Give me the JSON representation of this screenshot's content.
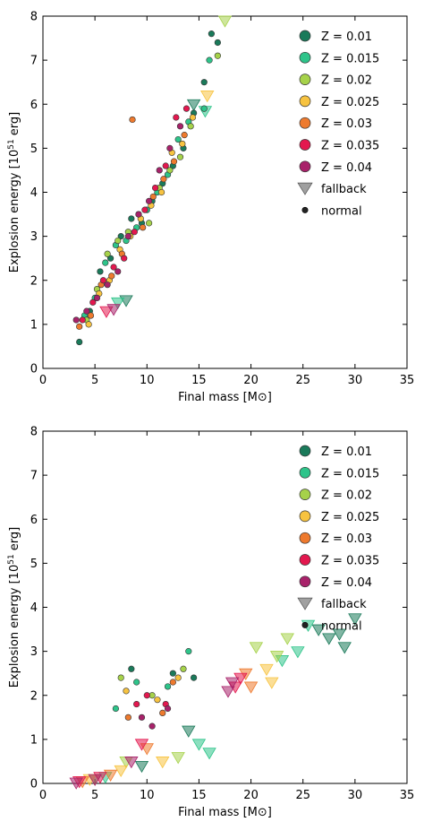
{
  "chart_data": [
    {
      "type": "scatter",
      "title": "",
      "xlabel": "Final mass [M⊙]",
      "ylabel_parts": [
        "Explosion energy [10",
        "51",
        " erg]"
      ],
      "xlim": [
        0,
        35
      ],
      "ylim": [
        0,
        8
      ],
      "xticks": [
        "0",
        "5",
        "10",
        "15",
        "20",
        "25",
        "30",
        "35"
      ],
      "yticks": [
        "0",
        "1",
        "2",
        "3",
        "4",
        "5",
        "6",
        "7",
        "8"
      ],
      "grid": false,
      "legend_position": "top-right",
      "legend": [
        {
          "label": "Z = 0.01",
          "marker": "circle",
          "color": "#1a7a5a"
        },
        {
          "label": "Z = 0.015",
          "marker": "circle",
          "color": "#2ec48a"
        },
        {
          "label": "Z = 0.02",
          "marker": "circle",
          "color": "#a6d24a"
        },
        {
          "label": "Z = 0.025",
          "marker": "circle",
          "color": "#f7c340"
        },
        {
          "label": "Z = 0.03",
          "marker": "circle",
          "color": "#ee7a2e"
        },
        {
          "label": "Z = 0.035",
          "marker": "circle",
          "color": "#e3184f"
        },
        {
          "label": "Z = 0.04",
          "marker": "circle",
          "color": "#a8226a"
        },
        {
          "label": "fallback",
          "marker": "triangle-down",
          "color": "#888888"
        },
        {
          "label": "normal",
          "marker": "circle-small",
          "color": "#222222"
        }
      ],
      "series": [
        {
          "metallicity": "0.01",
          "color": "#1a7a5a",
          "normal": [
            [
              3.5,
              0.6
            ],
            [
              4.5,
              1.3
            ],
            [
              5.5,
              2.2
            ],
            [
              6.5,
              2.5
            ],
            [
              7.5,
              3.0
            ],
            [
              8.5,
              3.4
            ],
            [
              9.5,
              3.3
            ],
            [
              10.5,
              3.8
            ],
            [
              11.5,
              4.2
            ],
            [
              12.5,
              4.6
            ],
            [
              13.5,
              5.0
            ],
            [
              14.5,
              5.8
            ],
            [
              15.5,
              6.5
            ],
            [
              16.2,
              7.6
            ],
            [
              16.8,
              7.4
            ]
          ],
          "fallback": [
            [
              8.0,
              1.55
            ],
            [
              14.5,
              6.0
            ]
          ]
        },
        {
          "metallicity": "0.015",
          "color": "#2ec48a",
          "normal": [
            [
              4.0,
              1.2
            ],
            [
              5.0,
              1.6
            ],
            [
              6.0,
              2.4
            ],
            [
              7.0,
              2.8
            ],
            [
              8.0,
              2.9
            ],
            [
              9.0,
              3.2
            ],
            [
              10.0,
              3.6
            ],
            [
              11.0,
              4.0
            ],
            [
              12.0,
              4.4
            ],
            [
              13.0,
              5.2
            ],
            [
              14.0,
              5.6
            ],
            [
              15.5,
              5.9
            ],
            [
              16.0,
              7.0
            ]
          ],
          "fallback": [
            [
              7.2,
              1.5
            ],
            [
              15.6,
              5.85
            ]
          ]
        },
        {
          "metallicity": "0.02",
          "color": "#a6d24a",
          "normal": [
            [
              4.2,
              1.1
            ],
            [
              5.2,
              1.8
            ],
            [
              6.2,
              2.6
            ],
            [
              7.2,
              2.9
            ],
            [
              8.2,
              3.1
            ],
            [
              9.2,
              3.5
            ],
            [
              10.2,
              3.3
            ],
            [
              11.2,
              4.1
            ],
            [
              12.2,
              4.5
            ],
            [
              13.2,
              4.8
            ],
            [
              14.2,
              5.5
            ],
            [
              16.8,
              7.1
            ]
          ],
          "fallback": [
            [
              17.5,
              7.9
            ]
          ]
        },
        {
          "metallicity": "0.025",
          "color": "#f7c340",
          "normal": [
            [
              4.4,
              1.0
            ],
            [
              5.4,
              1.7
            ],
            [
              6.4,
              2.0
            ],
            [
              7.4,
              2.7
            ],
            [
              8.4,
              3.0
            ],
            [
              9.4,
              3.4
            ],
            [
              10.4,
              3.7
            ],
            [
              11.4,
              4.0
            ],
            [
              12.4,
              4.9
            ],
            [
              13.4,
              5.1
            ],
            [
              14.4,
              5.7
            ]
          ],
          "fallback": [
            [
              15.8,
              6.2
            ]
          ]
        },
        {
          "metallicity": "0.03",
          "color": "#ee7a2e",
          "normal": [
            [
              3.5,
              0.95
            ],
            [
              4.6,
              1.2
            ],
            [
              5.6,
              1.9
            ],
            [
              6.6,
              2.1
            ],
            [
              7.6,
              2.6
            ],
            [
              8.6,
              5.65
            ],
            [
              9.6,
              3.2
            ],
            [
              10.6,
              3.9
            ],
            [
              11.6,
              4.3
            ],
            [
              12.6,
              4.7
            ],
            [
              13.6,
              5.3
            ]
          ],
          "fallback": []
        },
        {
          "metallicity": "0.035",
          "color": "#e3184f",
          "normal": [
            [
              3.8,
              1.1
            ],
            [
              4.8,
              1.5
            ],
            [
              5.8,
              2.0
            ],
            [
              6.8,
              2.3
            ],
            [
              7.8,
              2.5
            ],
            [
              8.8,
              3.1
            ],
            [
              9.8,
              3.6
            ],
            [
              10.8,
              4.1
            ],
            [
              11.8,
              4.6
            ],
            [
              12.8,
              5.7
            ],
            [
              13.8,
              5.9
            ]
          ],
          "fallback": [
            [
              6.1,
              1.3
            ]
          ]
        },
        {
          "metallicity": "0.04",
          "color": "#a8226a",
          "normal": [
            [
              3.2,
              1.1
            ],
            [
              4.2,
              1.3
            ],
            [
              5.2,
              1.6
            ],
            [
              6.2,
              1.9
            ],
            [
              7.2,
              2.2
            ],
            [
              8.2,
              3.0
            ],
            [
              9.2,
              3.5
            ],
            [
              10.2,
              3.8
            ],
            [
              11.2,
              4.5
            ],
            [
              12.2,
              5.0
            ],
            [
              13.2,
              5.5
            ]
          ],
          "fallback": [
            [
              6.8,
              1.35
            ]
          ]
        }
      ]
    },
    {
      "type": "scatter",
      "title": "",
      "xlabel": "Final mass [M⊙]",
      "ylabel_parts": [
        "Explosion energy [10",
        "51",
        " erg]"
      ],
      "xlim": [
        0,
        35
      ],
      "ylim": [
        0,
        8
      ],
      "xticks": [
        "0",
        "5",
        "10",
        "15",
        "20",
        "25",
        "30",
        "35"
      ],
      "yticks": [
        "0",
        "1",
        "2",
        "3",
        "4",
        "5",
        "6",
        "7",
        "8"
      ],
      "grid": false,
      "legend_position": "top-right",
      "legend": [
        {
          "label": "Z = 0.01",
          "marker": "circle",
          "color": "#1a7a5a"
        },
        {
          "label": "Z = 0.015",
          "marker": "circle",
          "color": "#2ec48a"
        },
        {
          "label": "Z = 0.02",
          "marker": "circle",
          "color": "#a6d24a"
        },
        {
          "label": "Z = 0.025",
          "marker": "circle",
          "color": "#f7c340"
        },
        {
          "label": "Z = 0.03",
          "marker": "circle",
          "color": "#ee7a2e"
        },
        {
          "label": "Z = 0.035",
          "marker": "circle",
          "color": "#e3184f"
        },
        {
          "label": "Z = 0.04",
          "marker": "circle",
          "color": "#a8226a"
        },
        {
          "label": "fallback",
          "marker": "triangle-down",
          "color": "#888888"
        },
        {
          "label": "normal",
          "marker": "circle-small",
          "color": "#222222"
        }
      ],
      "series": [
        {
          "metallicity": "0.01",
          "color": "#1a7a5a",
          "normal": [
            [
              8.5,
              2.6
            ],
            [
              12.5,
              2.5
            ],
            [
              14.5,
              2.4
            ]
          ],
          "fallback": [
            [
              26.5,
              3.5
            ],
            [
              27.5,
              3.3
            ],
            [
              28.5,
              3.4
            ],
            [
              30.0,
              3.75
            ],
            [
              29.0,
              3.1
            ],
            [
              14.0,
              1.2
            ],
            [
              9.5,
              0.4
            ]
          ]
        },
        {
          "metallicity": "0.015",
          "color": "#2ec48a",
          "normal": [
            [
              7.0,
              1.7
            ],
            [
              9.0,
              2.3
            ],
            [
              12.0,
              2.2
            ],
            [
              14.0,
              3.0
            ]
          ],
          "fallback": [
            [
              24.5,
              3.0
            ],
            [
              25.5,
              3.6
            ],
            [
              23.0,
              2.8
            ],
            [
              15.0,
              0.9
            ],
            [
              16.0,
              0.7
            ],
            [
              6.0,
              0.15
            ]
          ]
        },
        {
          "metallicity": "0.02",
          "color": "#a6d24a",
          "normal": [
            [
              7.5,
              2.4
            ],
            [
              10.5,
              2.0
            ],
            [
              13.5,
              2.6
            ]
          ],
          "fallback": [
            [
              20.5,
              3.1
            ],
            [
              23.5,
              3.3
            ],
            [
              22.5,
              2.9
            ],
            [
              13.0,
              0.6
            ],
            [
              8.0,
              0.5
            ],
            [
              5.0,
              0.1
            ]
          ]
        },
        {
          "metallicity": "0.025",
          "color": "#f7c340",
          "normal": [
            [
              8.0,
              2.1
            ],
            [
              11.0,
              1.9
            ],
            [
              13.0,
              2.4
            ]
          ],
          "fallback": [
            [
              21.5,
              2.6
            ],
            [
              22.0,
              2.3
            ],
            [
              11.5,
              0.5
            ],
            [
              7.5,
              0.3
            ],
            [
              4.5,
              0.1
            ]
          ]
        },
        {
          "metallicity": "0.03",
          "color": "#ee7a2e",
          "normal": [
            [
              8.2,
              1.5
            ],
            [
              11.5,
              1.6
            ],
            [
              12.5,
              2.3
            ]
          ],
          "fallback": [
            [
              19.5,
              2.5
            ],
            [
              20.0,
              2.2
            ],
            [
              10.0,
              0.8
            ],
            [
              6.5,
              0.2
            ],
            [
              3.8,
              0.05
            ]
          ]
        },
        {
          "metallicity": "0.035",
          "color": "#e3184f",
          "normal": [
            [
              9.0,
              1.8
            ],
            [
              10.0,
              2.0
            ],
            [
              11.8,
              1.8
            ]
          ],
          "fallback": [
            [
              18.5,
              2.2
            ],
            [
              19.0,
              2.4
            ],
            [
              9.5,
              0.9
            ],
            [
              5.5,
              0.15
            ],
            [
              3.5,
              0.05
            ]
          ]
        },
        {
          "metallicity": "0.04",
          "color": "#a8226a",
          "normal": [
            [
              9.5,
              1.5
            ],
            [
              10.5,
              1.3
            ],
            [
              12.0,
              1.7
            ]
          ],
          "fallback": [
            [
              17.8,
              2.1
            ],
            [
              18.2,
              2.3
            ],
            [
              8.5,
              0.5
            ],
            [
              5.0,
              0.1
            ],
            [
              3.2,
              0.02
            ]
          ]
        }
      ]
    }
  ]
}
